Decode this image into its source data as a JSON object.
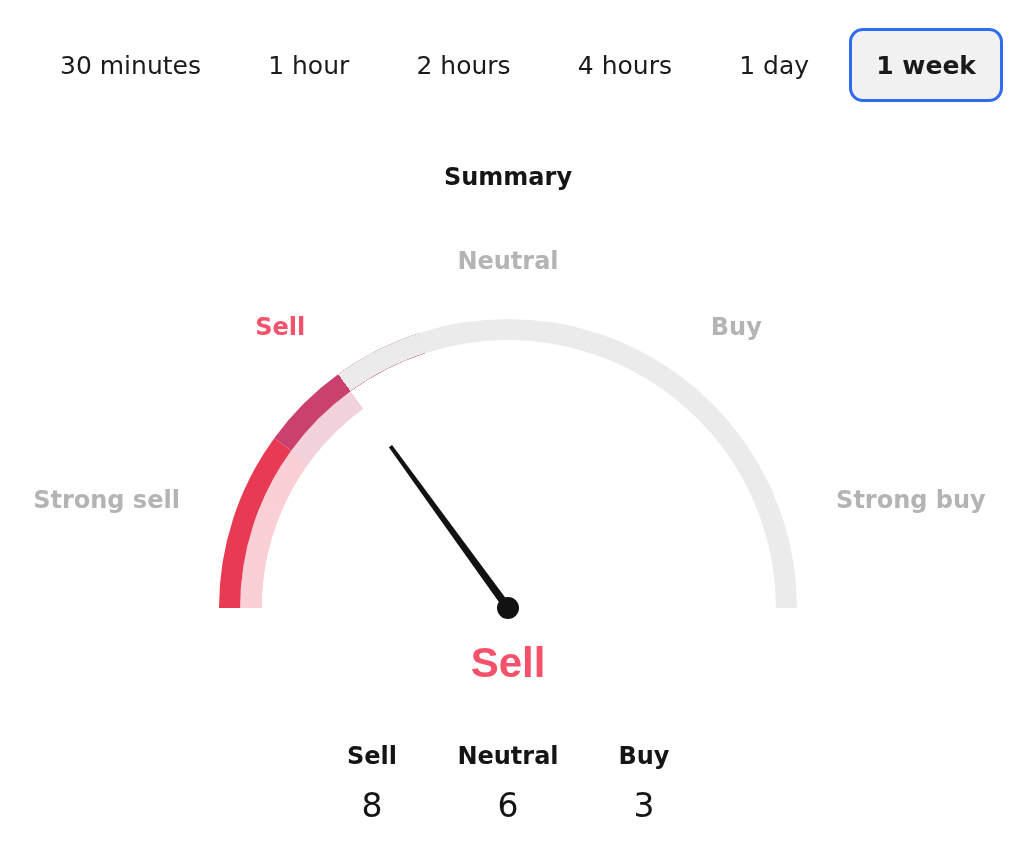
{
  "chart_data": [
    {
      "type": "donut",
      "title": "Summary",
      "categories": [
        "Strong sell",
        "Sell",
        "Neutral",
        "Buy",
        "Strong buy"
      ],
      "values": [
        20,
        20,
        20,
        20,
        20
      ],
      "colors": [
        "#e83a52",
        "#c9416c",
        "#ebebeb",
        "#ebebeb",
        "#ebebeb"
      ],
      "needle": "Sell",
      "annotations": [
        "30 minutes",
        "1 hour",
        "2 hours",
        "4 hours",
        "1 day",
        "1 week"
      ]
    },
    {
      "type": "other",
      "categories": [
        "Sell",
        "Neutral",
        "Buy"
      ],
      "values": [
        8,
        6,
        3
      ],
      "data_labels": true
    }
  ]
}
